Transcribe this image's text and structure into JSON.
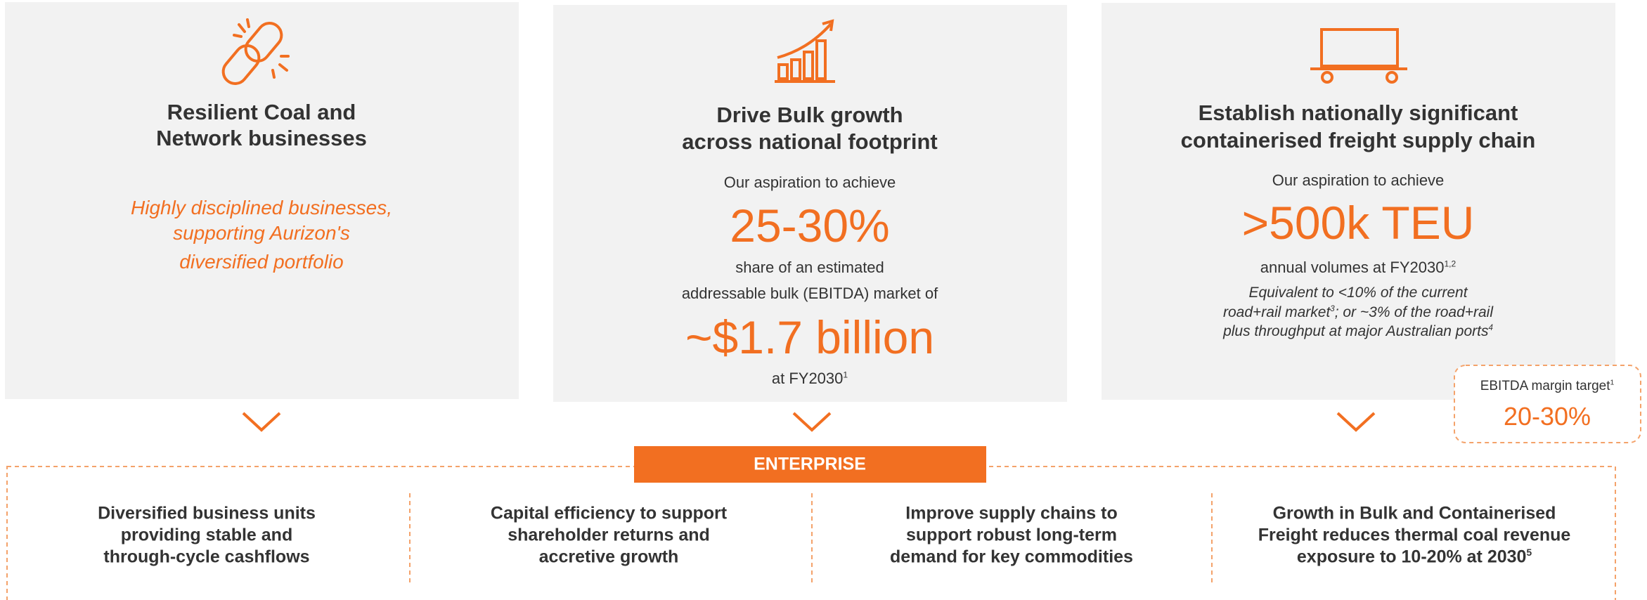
{
  "panels": [
    {
      "title_lines": [
        "Resilient Coal and",
        "Network businesses"
      ],
      "tagline_lines": [
        "Highly disciplined businesses,",
        "supporting Aurizon's",
        "diversified portfolio"
      ]
    },
    {
      "title_lines": [
        "Drive Bulk growth",
        "across national footprint"
      ],
      "intro": "Our aspiration to achieve",
      "highlight": "25-30%",
      "text_lines": [
        "share of an estimated",
        "addressable bulk (EBITDA) market of"
      ],
      "highlight2": "~$1.7 billion",
      "footer": {
        "text": "at FY2030",
        "sup": "1"
      }
    },
    {
      "title_lines": [
        "Establish nationally significant",
        "containerised freight supply chain"
      ],
      "intro": "Our aspiration to achieve",
      "highlight": ">500k TEU",
      "footer": {
        "text": "annual volumes at FY2030",
        "sup": "1,2"
      },
      "note_lines": [
        {
          "text": "Equivalent to <10% of the current"
        },
        {
          "text": "road+rail market",
          "sup": "3",
          "rest": "; or ~3% of the road+rail"
        },
        {
          "text": "plus throughput at major Australian ports",
          "sup": "4"
        }
      ]
    }
  ],
  "ebitda": {
    "label": "EBITDA margin target",
    "sup": "1",
    "value": "20-30%"
  },
  "enterprise": {
    "label": "ENTERPRISE",
    "items": [
      {
        "lines": [
          "Diversified business units",
          "providing stable and",
          "through-cycle cashflows"
        ]
      },
      {
        "lines": [
          "Capital efficiency to support",
          "shareholder returns and",
          "accretive growth"
        ]
      },
      {
        "lines": [
          "Improve supply chains to",
          "support robust long-term",
          "demand for key commodities"
        ]
      },
      {
        "lines": [
          "Growth in Bulk and Containerised",
          "Freight reduces thermal coal revenue",
          "exposure to 10-20% at 2030"
        ],
        "sup": "5"
      }
    ]
  }
}
